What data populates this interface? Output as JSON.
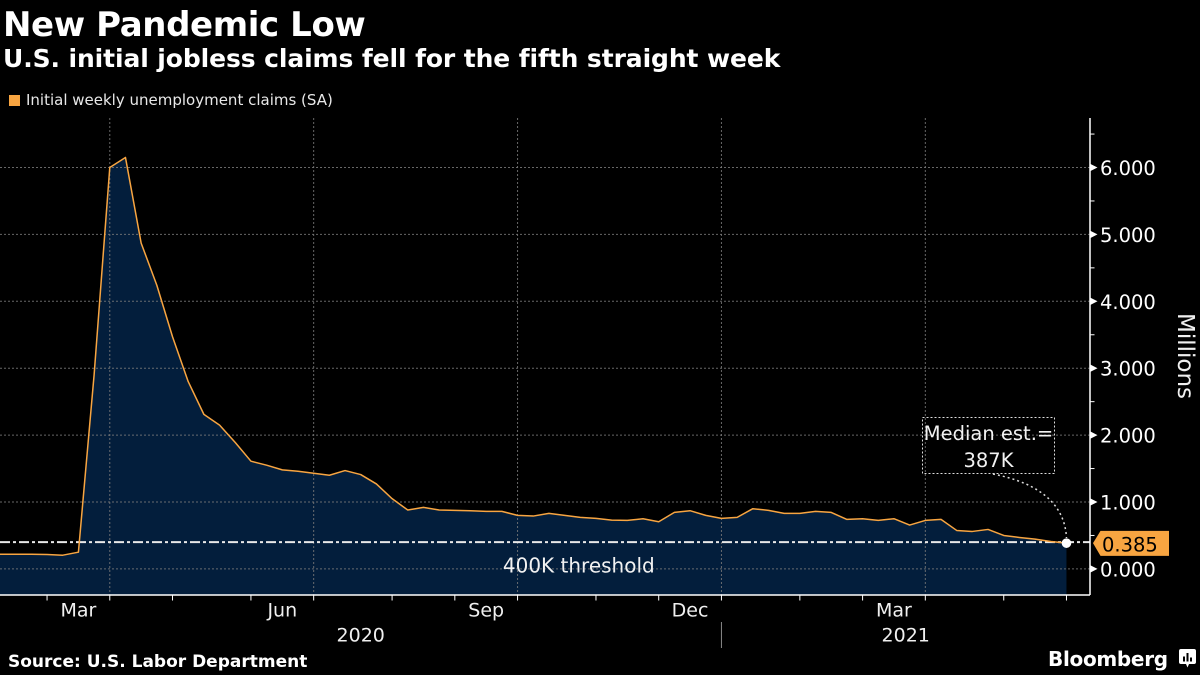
{
  "header": {
    "title": "New Pandemic Low",
    "subtitle": "U.S. initial jobless claims fell for the fifth straight week"
  },
  "footer": {
    "source": "Source: U.S. Labor Department",
    "brand": "Bloomberg",
    "brand_icon": "bar-chart-speech-bubble-icon"
  },
  "colors": {
    "background": "#000000",
    "line": "#F8A541",
    "area": "#031E3C",
    "value_label_bg": "#F8A541",
    "value_label_text": "#000000",
    "grid": "#7a7a7a",
    "axis": "#ffffff",
    "threshold": "#e8e8e8"
  },
  "chart_data": {
    "type": "area",
    "title": "New Pandemic Low",
    "subtitle": "U.S. initial jobless claims fell for the fifth straight week",
    "xlabel": "",
    "ylabel": "Millions",
    "y_axis_side": "right",
    "grid": true,
    "legend": {
      "position": "top-left",
      "entries": [
        "Initial weekly unemployment claims (SA)"
      ]
    },
    "x": [
      "2020-02-08",
      "2020-02-15",
      "2020-02-22",
      "2020-02-29",
      "2020-03-07",
      "2020-03-14",
      "2020-03-21",
      "2020-03-28",
      "2020-04-04",
      "2020-04-11",
      "2020-04-18",
      "2020-04-25",
      "2020-05-02",
      "2020-05-09",
      "2020-05-16",
      "2020-05-23",
      "2020-05-30",
      "2020-06-06",
      "2020-06-13",
      "2020-06-20",
      "2020-06-27",
      "2020-07-04",
      "2020-07-11",
      "2020-07-18",
      "2020-07-25",
      "2020-08-01",
      "2020-08-08",
      "2020-08-15",
      "2020-08-22",
      "2020-08-29",
      "2020-09-05",
      "2020-09-12",
      "2020-09-19",
      "2020-09-26",
      "2020-10-03",
      "2020-10-10",
      "2020-10-17",
      "2020-10-24",
      "2020-10-31",
      "2020-11-07",
      "2020-11-14",
      "2020-11-21",
      "2020-11-28",
      "2020-12-05",
      "2020-12-12",
      "2020-12-19",
      "2020-12-26",
      "2021-01-02",
      "2021-01-09",
      "2021-01-16",
      "2021-01-23",
      "2021-01-30",
      "2021-02-06",
      "2021-02-13",
      "2021-02-20",
      "2021-02-27",
      "2021-03-06",
      "2021-03-13",
      "2021-03-20",
      "2021-03-27",
      "2021-04-03",
      "2021-04-10",
      "2021-04-17",
      "2021-04-24",
      "2021-05-01",
      "2021-05-08",
      "2021-05-15",
      "2021-05-22",
      "2021-05-29"
    ],
    "series": [
      {
        "name": "Initial weekly unemployment claims (SA)",
        "unit": "millions",
        "values": [
          0.22,
          0.22,
          0.22,
          0.215,
          0.205,
          0.25,
          2.9,
          6.0,
          6.15,
          4.87,
          4.24,
          3.47,
          2.8,
          2.31,
          2.15,
          1.89,
          1.61,
          1.55,
          1.48,
          1.46,
          1.43,
          1.4,
          1.47,
          1.41,
          1.27,
          1.05,
          0.88,
          0.92,
          0.88,
          0.875,
          0.87,
          0.86,
          0.86,
          0.8,
          0.79,
          0.83,
          0.8,
          0.77,
          0.755,
          0.73,
          0.725,
          0.75,
          0.705,
          0.845,
          0.87,
          0.8,
          0.755,
          0.77,
          0.9,
          0.875,
          0.83,
          0.83,
          0.86,
          0.845,
          0.74,
          0.75,
          0.725,
          0.75,
          0.655,
          0.725,
          0.74,
          0.575,
          0.56,
          0.59,
          0.5,
          0.47,
          0.445,
          0.41,
          0.385
        ]
      }
    ],
    "xlim_index": [
      0,
      69.5
    ],
    "ylim": [
      -0.39,
      6.74
    ],
    "y_ticks": [
      0,
      1,
      2,
      3,
      4,
      5,
      6
    ],
    "y_tick_labels": [
      "0.000",
      "1.000",
      "2.000",
      "3.000",
      "4.000",
      "5.000",
      "6.000"
    ],
    "y_minor_ticks": [
      0.5,
      1.5,
      2.5,
      3.5,
      4.5,
      5.5,
      6.5
    ],
    "x_tick_index": [
      3,
      7,
      11,
      16,
      20,
      25,
      29,
      33,
      38,
      42,
      46,
      51,
      55,
      59,
      64,
      68
    ],
    "x_grid_index": [
      7,
      20,
      33,
      46,
      59
    ],
    "x_month_labels": [
      {
        "label": "Mar",
        "from": 3,
        "to": 7
      },
      {
        "label": "Jun",
        "from": 16,
        "to": 20
      },
      {
        "label": "Sep",
        "from": 29,
        "to": 33
      },
      {
        "label": "Dec",
        "from": 42,
        "to": 46
      },
      {
        "label": "Mar",
        "from": 55,
        "to": 59
      }
    ],
    "x_year_labels": [
      {
        "label": "2020",
        "from": 0,
        "to": 46
      },
      {
        "label": "2021",
        "from": 46,
        "to": 69.5
      }
    ],
    "x_year_divider_index": 46,
    "annotations": {
      "threshold": {
        "value": 0.4,
        "label": "400K threshold"
      },
      "median_estimate": {
        "line1": "Median est.=",
        "line2": "387K",
        "value": 0.387
      },
      "last_value": {
        "value": 0.385,
        "label": "0.385"
      }
    }
  }
}
